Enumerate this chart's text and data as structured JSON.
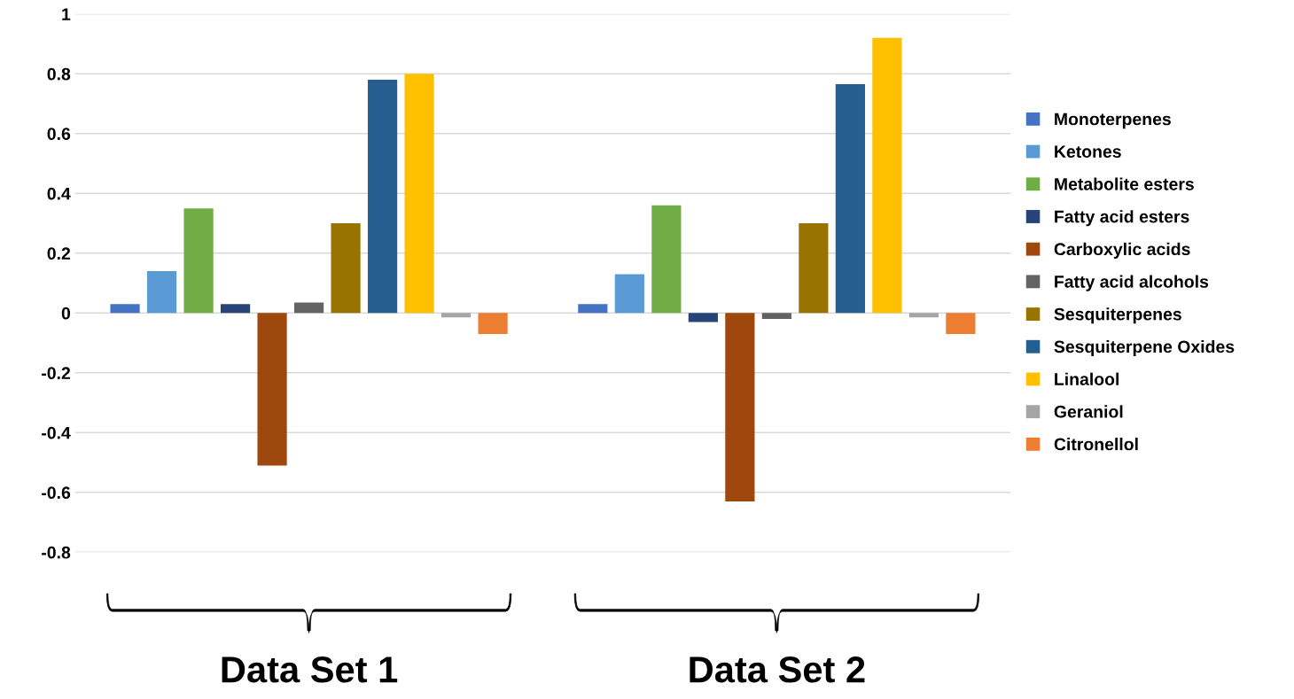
{
  "chart_data": {
    "type": "bar",
    "categories": [
      "Data Set 1",
      "Data Set 2"
    ],
    "series": [
      {
        "name": "Monoterpenes",
        "color": "#4472c4",
        "values": [
          0.03,
          0.03
        ]
      },
      {
        "name": "Ketones",
        "color": "#5b9bd5",
        "values": [
          0.14,
          0.13
        ]
      },
      {
        "name": "Metabolite esters",
        "color": "#70ad47",
        "values": [
          0.35,
          0.36
        ]
      },
      {
        "name": "Fatty acid esters",
        "color": "#264478",
        "values": [
          0.03,
          -0.03
        ]
      },
      {
        "name": "Carboxylic acids",
        "color": "#9e480e",
        "values": [
          -0.51,
          -0.63
        ]
      },
      {
        "name": "Fatty acid alcohols",
        "color": "#636363",
        "values": [
          0.035,
          -0.02
        ]
      },
      {
        "name": "Sesquiterpenes",
        "color": "#997300",
        "values": [
          0.3,
          0.3
        ]
      },
      {
        "name": "Sesquiterpene Oxides",
        "color": "#255e91",
        "values": [
          0.78,
          0.765
        ]
      },
      {
        "name": "Linalool",
        "color": "#ffc000",
        "values": [
          0.8,
          0.92
        ]
      },
      {
        "name": "Geraniol",
        "color": "#a5a5a5",
        "values": [
          -0.015,
          -0.015
        ]
      },
      {
        "name": "Citronellol",
        "color": "#ed7d31",
        "values": [
          -0.07,
          -0.07
        ]
      }
    ],
    "ylim": [
      -0.8,
      1
    ],
    "yticks": [
      -0.8,
      -0.6,
      -0.4,
      -0.2,
      0,
      0.2,
      0.4,
      0.6,
      0.8,
      1
    ],
    "grid": "y",
    "legend": "right"
  }
}
